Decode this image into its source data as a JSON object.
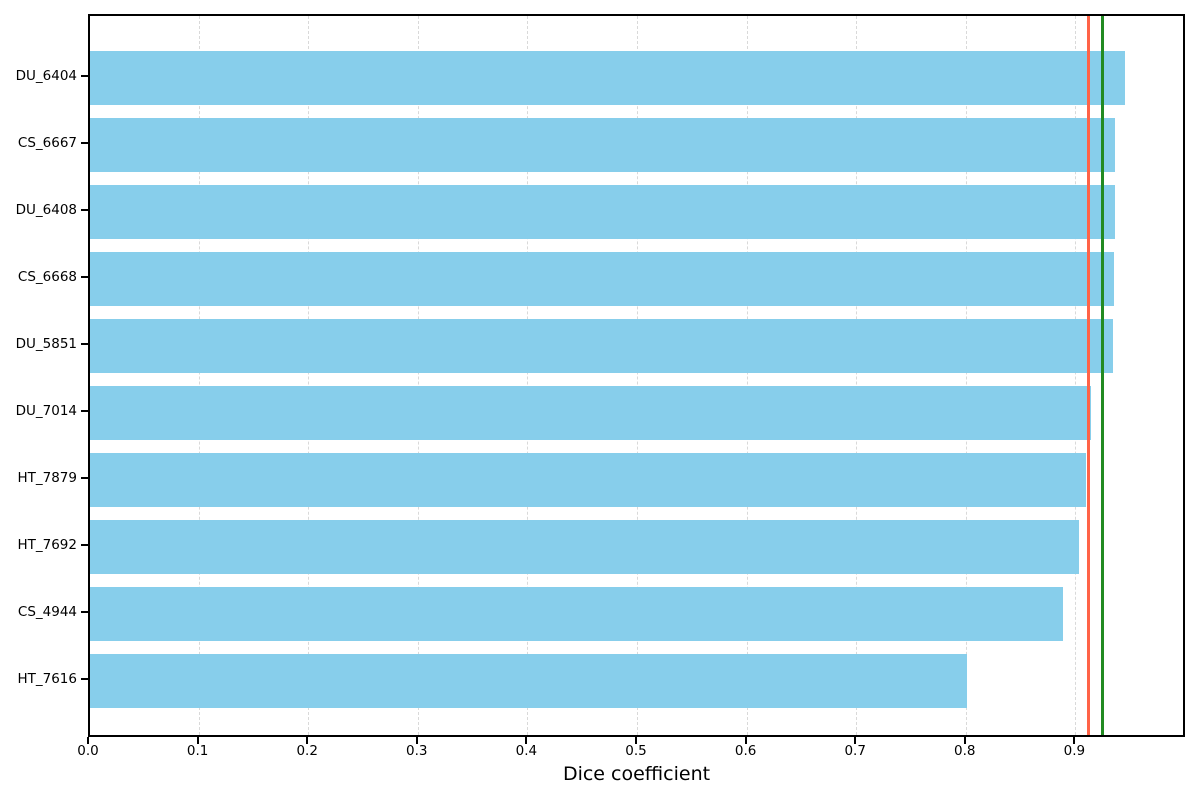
{
  "chart_data": {
    "type": "bar",
    "orientation": "horizontal",
    "title": "",
    "xlabel": "Dice coefficient",
    "ylabel": "",
    "categories": [
      "DU_6404",
      "CS_6667",
      "DU_6408",
      "CS_6668",
      "DU_5851",
      "DU_7014",
      "HT_7879",
      "HT_7692",
      "CS_4944",
      "HT_7616"
    ],
    "values": [
      0.944,
      0.935,
      0.935,
      0.934,
      0.933,
      0.913,
      0.909,
      0.902,
      0.888,
      0.8
    ],
    "xlim": [
      0.0,
      1.0
    ],
    "xticks": [
      0.0,
      0.1,
      0.2,
      0.3,
      0.4,
      0.5,
      0.6,
      0.7,
      0.8,
      0.9
    ],
    "grid": "vertical-dashed",
    "legend": "none",
    "bar_color": "#87CEEB",
    "grid_color": "#d9d9d9",
    "spine_color": "#000000",
    "reference_lines": [
      {
        "name": "red-reference-line",
        "value": 0.911,
        "color": "#FF6347"
      },
      {
        "name": "green-reference-line",
        "value": 0.924,
        "color": "#228B22"
      }
    ]
  }
}
